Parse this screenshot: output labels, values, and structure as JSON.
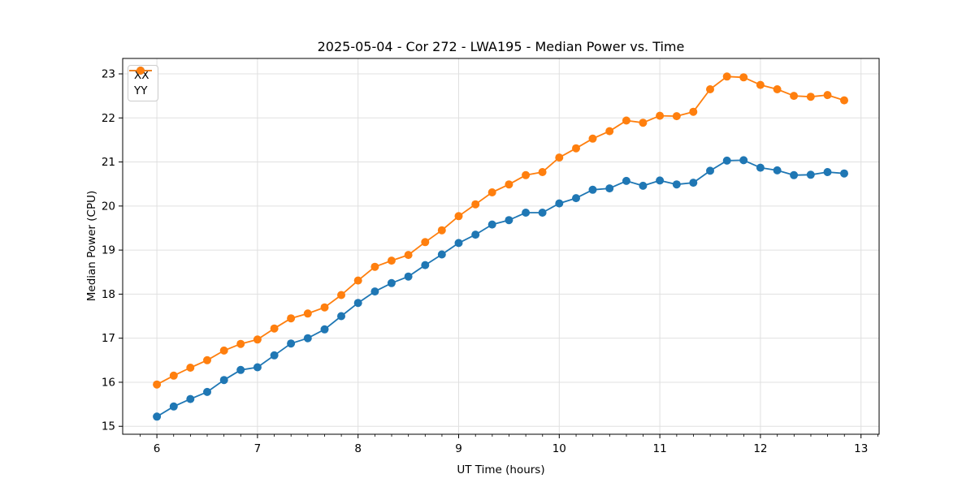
{
  "figure": {
    "background": "#ffffff"
  },
  "chart_data": {
    "type": "line",
    "title": "2025-05-04 - Cor 272 - LWA195 - Median Power vs. Time",
    "xlabel": "UT Time (hours)",
    "ylabel": "Median Power (CPU)",
    "xlim": [
      5.66,
      13.18
    ],
    "ylim": [
      14.82,
      23.35
    ],
    "x_ticks": [
      6,
      7,
      8,
      9,
      10,
      11,
      12,
      13
    ],
    "y_ticks": [
      15,
      16,
      17,
      18,
      19,
      20,
      21,
      22,
      23
    ],
    "x_minor_tick_step": 0.1667,
    "grid": true,
    "grid_color": "#e0e0e0",
    "legend_position": "upper-left",
    "x": [
      6.0,
      6.167,
      6.333,
      6.5,
      6.667,
      6.833,
      7.0,
      7.167,
      7.333,
      7.5,
      7.667,
      7.833,
      8.0,
      8.167,
      8.333,
      8.5,
      8.667,
      8.833,
      9.0,
      9.167,
      9.333,
      9.5,
      9.667,
      9.833,
      10.0,
      10.167,
      10.333,
      10.5,
      10.667,
      10.833,
      11.0,
      11.167,
      11.333,
      11.5,
      11.667,
      11.833,
      12.0,
      12.167,
      12.333,
      12.5,
      12.667,
      12.833
    ],
    "series": [
      {
        "name": "XX",
        "color": "#1f77b4",
        "values": [
          15.22,
          15.45,
          15.62,
          15.78,
          16.05,
          16.28,
          16.34,
          16.61,
          16.88,
          17.0,
          17.2,
          17.5,
          17.8,
          18.06,
          18.25,
          18.4,
          18.66,
          18.9,
          19.16,
          19.35,
          19.58,
          19.68,
          19.85,
          19.85,
          20.06,
          20.18,
          20.37,
          20.4,
          20.57,
          20.46,
          20.58,
          20.49,
          20.53,
          20.8,
          21.03,
          21.04,
          20.87,
          20.81,
          20.7,
          20.71,
          20.77,
          20.74
        ]
      },
      {
        "name": "YY",
        "color": "#ff7f0e",
        "values": [
          15.95,
          16.15,
          16.33,
          16.5,
          16.72,
          16.87,
          16.97,
          17.22,
          17.45,
          17.56,
          17.7,
          17.98,
          18.31,
          18.62,
          18.76,
          18.89,
          19.18,
          19.45,
          19.77,
          20.04,
          20.31,
          20.49,
          20.7,
          20.77,
          21.1,
          21.31,
          21.53,
          21.7,
          21.94,
          21.89,
          22.05,
          22.04,
          22.14,
          22.65,
          22.94,
          22.92,
          22.75,
          22.65,
          22.5,
          22.48,
          22.52,
          22.4
        ]
      }
    ]
  }
}
